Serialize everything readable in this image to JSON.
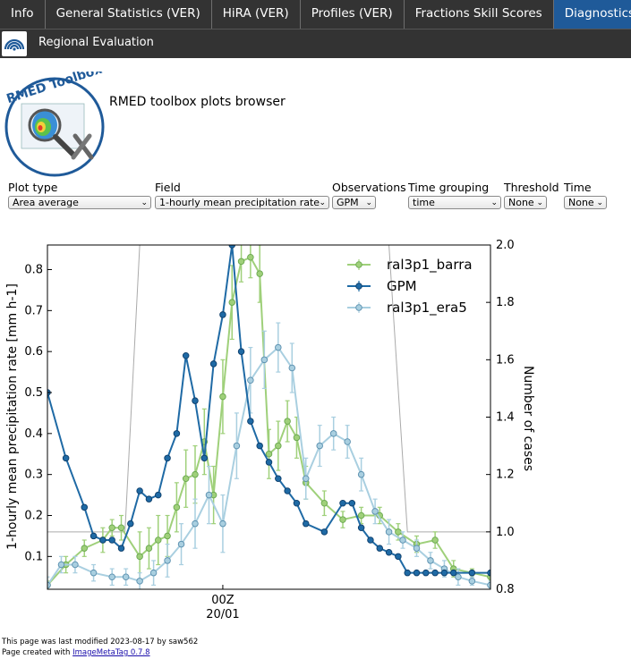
{
  "tabs": [
    {
      "label": "Info",
      "active": false
    },
    {
      "label": "General Statistics (VER)",
      "active": false
    },
    {
      "label": "HiRA (VER)",
      "active": false
    },
    {
      "label": "Profiles (VER)",
      "active": false
    },
    {
      "label": "Fractions Skill Scores",
      "active": false
    },
    {
      "label": "Diagnostics",
      "active": true
    }
  ],
  "subnav": {
    "label": "Regional Evaluation"
  },
  "header": {
    "logo_text": "RMED Toolbox",
    "title": "RMED toolbox plots browser"
  },
  "selectors": [
    {
      "label": "Plot type",
      "value": "Area average"
    },
    {
      "label": "Field",
      "value": "1-hourly mean precipitation rate"
    },
    {
      "label": "Observations",
      "value": "GPM"
    },
    {
      "label": "Time grouping",
      "value": "time"
    },
    {
      "label": "Threshold",
      "value": "None"
    },
    {
      "label": "Time",
      "value": "None"
    }
  ],
  "chart_data": {
    "type": "line",
    "ylabel": "1-hourly mean precipitation rate [mm h-1]",
    "y2label": "Number of cases",
    "ylim": [
      0.02,
      0.86
    ],
    "y2lim": [
      0.8,
      2.0
    ],
    "yticks": [
      0.1,
      0.2,
      0.3,
      0.4,
      0.5,
      0.6,
      0.7,
      0.8
    ],
    "y2ticks": [
      0.8,
      1.0,
      1.2,
      1.4,
      1.6,
      1.8,
      2.0
    ],
    "xlim": [
      0,
      24
    ],
    "xtick_pos": 9.5,
    "xtick_labels": [
      "00Z",
      "20/01"
    ],
    "legend_loc": "upper right",
    "grid": false,
    "series": [
      {
        "name": "ral3p1_barra",
        "color": "#9fd07a",
        "edge": "#6aa84f",
        "x": [
          0,
          1,
          2,
          3,
          3.5,
          4,
          5,
          5.5,
          6,
          6.5,
          7,
          7.5,
          8,
          8.5,
          9,
          9.5,
          10,
          10.5,
          11,
          11.5,
          12,
          12.5,
          13,
          13.5,
          14,
          15,
          16,
          17,
          18,
          19,
          20,
          21,
          22,
          23,
          24
        ],
        "y": [
          0.03,
          0.08,
          0.12,
          0.14,
          0.17,
          0.17,
          0.1,
          0.12,
          0.14,
          0.15,
          0.22,
          0.29,
          0.3,
          0.38,
          0.25,
          0.49,
          0.72,
          0.82,
          0.83,
          0.79,
          0.35,
          0.37,
          0.43,
          0.39,
          0.28,
          0.23,
          0.19,
          0.2,
          0.2,
          0.16,
          0.13,
          0.14,
          0.07,
          0.06,
          0.05
        ],
        "err": [
          0.01,
          0.02,
          0.02,
          0.03,
          0.02,
          0.03,
          0.06,
          0.05,
          0.06,
          0.05,
          0.06,
          0.07,
          0.07,
          0.08,
          0.07,
          0.09,
          0.09,
          0.05,
          0.05,
          0.07,
          0.06,
          0.06,
          0.05,
          0.05,
          0.04,
          0.03,
          0.02,
          0.02,
          0.02,
          0.02,
          0.02,
          0.02,
          0.02,
          0.01,
          0.01
        ]
      },
      {
        "name": "GPM",
        "color": "#1f6aa5",
        "edge": "#0d3e6b",
        "x": [
          0,
          1,
          2,
          2.5,
          3,
          3.5,
          4,
          4.5,
          5,
          5.5,
          6,
          6.5,
          7,
          7.5,
          8,
          8.5,
          9,
          9.5,
          10,
          10.5,
          11,
          11.5,
          12,
          12.5,
          13,
          13.5,
          14,
          15,
          16,
          16.5,
          17,
          17.5,
          18,
          18.5,
          19,
          19.5,
          20,
          20.5,
          21,
          21.5,
          22,
          23,
          24
        ],
        "y": [
          0.5,
          0.34,
          0.22,
          0.15,
          0.14,
          0.14,
          0.12,
          0.18,
          0.26,
          0.24,
          0.25,
          0.34,
          0.4,
          0.59,
          0.48,
          0.34,
          0.57,
          0.69,
          0.86,
          0.6,
          0.43,
          0.37,
          0.33,
          0.29,
          0.26,
          0.23,
          0.18,
          0.16,
          0.23,
          0.23,
          0.17,
          0.14,
          0.12,
          0.11,
          0.1,
          0.06,
          0.06,
          0.06,
          0.06,
          0.06,
          0.06,
          0.06,
          0.06
        ]
      },
      {
        "name": "ral3p1_era5",
        "color": "#a9cfe0",
        "edge": "#5a8fae",
        "x": [
          0,
          0.75,
          1.5,
          2.5,
          3.5,
          4.25,
          5,
          5.75,
          6.5,
          7.25,
          8,
          8.75,
          9.5,
          10.25,
          11,
          11.75,
          12.5,
          13.25,
          14,
          14.75,
          15.5,
          16.25,
          17,
          17.75,
          18.5,
          19.25,
          20,
          20.75,
          21.5,
          22.25,
          23,
          24
        ],
        "y": [
          0.03,
          0.08,
          0.08,
          0.06,
          0.05,
          0.05,
          0.04,
          0.06,
          0.09,
          0.13,
          0.18,
          0.25,
          0.18,
          0.37,
          0.53,
          0.58,
          0.61,
          0.56,
          0.29,
          0.37,
          0.4,
          0.38,
          0.3,
          0.21,
          0.16,
          0.14,
          0.12,
          0.09,
          0.07,
          0.05,
          0.04,
          0.03
        ],
        "err": [
          0.02,
          0.02,
          0.02,
          0.02,
          0.02,
          0.02,
          0.02,
          0.03,
          0.04,
          0.05,
          0.06,
          0.07,
          0.07,
          0.08,
          0.08,
          0.07,
          0.06,
          0.06,
          0.05,
          0.05,
          0.04,
          0.04,
          0.04,
          0.03,
          0.03,
          0.02,
          0.02,
          0.02,
          0.02,
          0.02,
          0.01,
          0.01
        ]
      }
    ],
    "cases_line": {
      "name": "Number of cases",
      "color": "#aaaaaa",
      "x": [
        0,
        4.2,
        5,
        18.5,
        19.5,
        24
      ],
      "y": [
        1.0,
        1.0,
        2.0,
        2.0,
        1.0,
        1.0
      ]
    }
  },
  "footer": {
    "modified": "This page was last modified 2023-08-17 by saw562",
    "created_prefix": "Page created with ",
    "created_link": "ImageMetaTag 0.7.8"
  }
}
